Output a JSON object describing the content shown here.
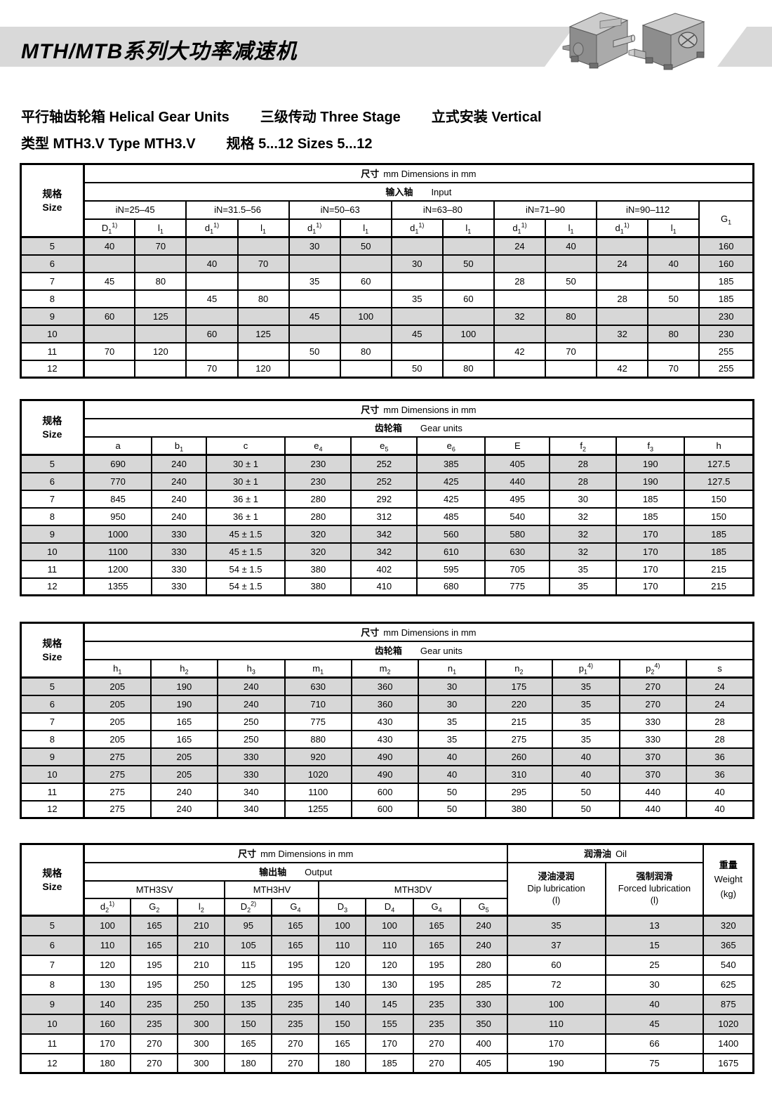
{
  "header": {
    "banner_title": "MTH/MTB系列大功率减速机",
    "subtitle1": [
      "平行轴齿轮箱 Helical Gear Units",
      "三级传动 Three Stage",
      "立式安装 Vertical"
    ],
    "subtitle2": [
      "类型 MTH3.V Type MTH3.V",
      "规格 5...12 Sizes 5...12"
    ],
    "colors": {
      "banner_gray": "#d9d9d9",
      "shaded_row_gray": "#d7d7d7"
    },
    "images": [
      "gearbox-unit-horizontal",
      "gearbox-unit-vertical"
    ]
  },
  "size_header": {
    "cn": "规格",
    "en": "Size"
  },
  "table1": {
    "dims": {
      "cn": "尺寸",
      "en": "mm Dimensions in mm"
    },
    "section": {
      "cn": "输入轴",
      "en": "Input"
    },
    "groups": [
      "iN=25–45",
      "iN=31.5–56",
      "iN=50–63",
      "iN=63–80",
      "iN=71–90",
      "iN=90–112"
    ],
    "g1": {
      "b": "G",
      "s": "1"
    },
    "cols": [
      {
        "b": "D",
        "s": "1",
        "p": "1)"
      },
      {
        "b": "l",
        "s": "1"
      },
      {
        "b": "d",
        "s": "1",
        "p": "1)"
      },
      {
        "b": "l",
        "s": "1"
      },
      {
        "b": "d",
        "s": "1",
        "p": "1)"
      },
      {
        "b": "l",
        "s": "1"
      },
      {
        "b": "d",
        "s": "1",
        "p": "1)"
      },
      {
        "b": "l",
        "s": "1"
      },
      {
        "b": "d",
        "s": "1",
        "p": "1)"
      },
      {
        "b": "l",
        "s": "1"
      },
      {
        "b": "d",
        "s": "1",
        "p": "1)"
      },
      {
        "b": "l",
        "s": "1"
      }
    ],
    "rows": [
      {
        "size": "5",
        "shaded": true,
        "cells": [
          "40",
          "70",
          "",
          "",
          "30",
          "50",
          "",
          "",
          "24",
          "40",
          "",
          "",
          "160"
        ]
      },
      {
        "size": "6",
        "shaded": true,
        "cells": [
          "",
          "",
          "40",
          "70",
          "",
          "",
          "30",
          "50",
          "",
          "",
          "24",
          "40",
          "160"
        ]
      },
      {
        "size": "7",
        "shaded": false,
        "cells": [
          "45",
          "80",
          "",
          "",
          "35",
          "60",
          "",
          "",
          "28",
          "50",
          "",
          "",
          "185"
        ]
      },
      {
        "size": "8",
        "shaded": false,
        "cells": [
          "",
          "",
          "45",
          "80",
          "",
          "",
          "35",
          "60",
          "",
          "",
          "28",
          "50",
          "185"
        ]
      },
      {
        "size": "9",
        "shaded": true,
        "cells": [
          "60",
          "125",
          "",
          "",
          "45",
          "100",
          "",
          "",
          "32",
          "80",
          "",
          "",
          "230"
        ]
      },
      {
        "size": "10",
        "shaded": true,
        "cells": [
          "",
          "",
          "60",
          "125",
          "",
          "",
          "45",
          "100",
          "",
          "",
          "32",
          "80",
          "230"
        ]
      },
      {
        "size": "11",
        "shaded": false,
        "cells": [
          "70",
          "120",
          "",
          "",
          "50",
          "80",
          "",
          "",
          "42",
          "70",
          "",
          "",
          "255"
        ]
      },
      {
        "size": "12",
        "shaded": false,
        "cells": [
          "",
          "",
          "70",
          "120",
          "",
          "",
          "50",
          "80",
          "",
          "",
          "42",
          "70",
          "255"
        ]
      }
    ]
  },
  "table2": {
    "dims": {
      "cn": "尺寸",
      "en": "mm Dimensions in mm"
    },
    "section": {
      "cn": "齿轮箱",
      "en": "Gear units"
    },
    "cols": [
      {
        "b": "a"
      },
      {
        "b": "b",
        "s": "1"
      },
      {
        "b": "c"
      },
      {
        "b": "e",
        "s": "4"
      },
      {
        "b": "e",
        "s": "5"
      },
      {
        "b": "e",
        "s": "6"
      },
      {
        "b": "E"
      },
      {
        "b": "f",
        "s": "2"
      },
      {
        "b": "f",
        "s": "3"
      },
      {
        "b": "h"
      }
    ],
    "rows": [
      {
        "size": "5",
        "shaded": true,
        "cells": [
          "690",
          "240",
          "30 ± 1",
          "230",
          "252",
          "385",
          "405",
          "28",
          "190",
          "127.5"
        ]
      },
      {
        "size": "6",
        "shaded": true,
        "cells": [
          "770",
          "240",
          "30 ± 1",
          "230",
          "252",
          "425",
          "440",
          "28",
          "190",
          "127.5"
        ]
      },
      {
        "size": "7",
        "shaded": false,
        "cells": [
          "845",
          "240",
          "36 ± 1",
          "280",
          "292",
          "425",
          "495",
          "30",
          "185",
          "150"
        ]
      },
      {
        "size": "8",
        "shaded": false,
        "cells": [
          "950",
          "240",
          "36 ± 1",
          "280",
          "312",
          "485",
          "540",
          "32",
          "185",
          "150"
        ]
      },
      {
        "size": "9",
        "shaded": true,
        "cells": [
          "1000",
          "330",
          "45 ± 1.5",
          "320",
          "342",
          "560",
          "580",
          "32",
          "170",
          "185"
        ]
      },
      {
        "size": "10",
        "shaded": true,
        "cells": [
          "1100",
          "330",
          "45 ± 1.5",
          "320",
          "342",
          "610",
          "630",
          "32",
          "170",
          "185"
        ]
      },
      {
        "size": "11",
        "shaded": false,
        "cells": [
          "1200",
          "330",
          "54 ± 1.5",
          "380",
          "402",
          "595",
          "705",
          "35",
          "170",
          "215"
        ]
      },
      {
        "size": "12",
        "shaded": false,
        "cells": [
          "1355",
          "330",
          "54 ± 1.5",
          "380",
          "410",
          "680",
          "775",
          "35",
          "170",
          "215"
        ]
      }
    ]
  },
  "table3": {
    "dims": {
      "cn": "尺寸",
      "en": "mm Dimensions in mm"
    },
    "section": {
      "cn": "齿轮箱",
      "en": "Gear units"
    },
    "cols": [
      {
        "b": "h",
        "s": "1"
      },
      {
        "b": "h",
        "s": "2"
      },
      {
        "b": "h",
        "s": "3"
      },
      {
        "b": "m",
        "s": "1"
      },
      {
        "b": "m",
        "s": "2"
      },
      {
        "b": "n",
        "s": "1"
      },
      {
        "b": "n",
        "s": "2"
      },
      {
        "b": "p",
        "s": "1",
        "p": "4)"
      },
      {
        "b": "p",
        "s": "2",
        "p": "4)"
      },
      {
        "b": "s"
      }
    ],
    "rows": [
      {
        "size": "5",
        "shaded": true,
        "cells": [
          "205",
          "190",
          "240",
          "630",
          "360",
          "30",
          "175",
          "35",
          "270",
          "24"
        ]
      },
      {
        "size": "6",
        "shaded": true,
        "cells": [
          "205",
          "190",
          "240",
          "710",
          "360",
          "30",
          "220",
          "35",
          "270",
          "24"
        ]
      },
      {
        "size": "7",
        "shaded": false,
        "cells": [
          "205",
          "165",
          "250",
          "775",
          "430",
          "35",
          "215",
          "35",
          "330",
          "28"
        ]
      },
      {
        "size": "8",
        "shaded": false,
        "cells": [
          "205",
          "165",
          "250",
          "880",
          "430",
          "35",
          "275",
          "35",
          "330",
          "28"
        ]
      },
      {
        "size": "9",
        "shaded": true,
        "cells": [
          "275",
          "205",
          "330",
          "920",
          "490",
          "40",
          "260",
          "40",
          "370",
          "36"
        ]
      },
      {
        "size": "10",
        "shaded": true,
        "cells": [
          "275",
          "205",
          "330",
          "1020",
          "490",
          "40",
          "310",
          "40",
          "370",
          "36"
        ]
      },
      {
        "size": "11",
        "shaded": false,
        "cells": [
          "275",
          "240",
          "340",
          "1100",
          "600",
          "50",
          "295",
          "50",
          "440",
          "40"
        ]
      },
      {
        "size": "12",
        "shaded": false,
        "cells": [
          "275",
          "240",
          "340",
          "1255",
          "600",
          "50",
          "380",
          "50",
          "440",
          "40"
        ]
      }
    ]
  },
  "table4": {
    "dims": {
      "cn": "尺寸",
      "en": "mm Dimensions in mm"
    },
    "oil": {
      "cn": "润滑油",
      "en": "Oil"
    },
    "weight": {
      "cn": "重量",
      "en": "Weight",
      "unit": "(kg)"
    },
    "section": {
      "cn": "输出轴",
      "en": "Output"
    },
    "dip": {
      "cn": "浸油浸润",
      "en": "Dip lubrication",
      "unit": "(l)"
    },
    "forced": {
      "cn": "强制润滑",
      "en": "Forced lubrication",
      "unit": "(l)"
    },
    "models": [
      "MTH3SV",
      "MTH3HV",
      "MTH3DV"
    ],
    "cols": [
      {
        "b": "d",
        "s": "2",
        "p": "1)"
      },
      {
        "b": "G",
        "s": "2"
      },
      {
        "b": "l",
        "s": "2"
      },
      {
        "b": "D",
        "s": "2",
        "p": "2)"
      },
      {
        "b": "G",
        "s": "4"
      },
      {
        "b": "D",
        "s": "3"
      },
      {
        "b": "D",
        "s": "4"
      },
      {
        "b": "G",
        "s": "4"
      },
      {
        "b": "G",
        "s": "5"
      }
    ],
    "rows": [
      {
        "size": "5",
        "shaded": true,
        "cells": [
          "100",
          "165",
          "210",
          "95",
          "165",
          "100",
          "100",
          "165",
          "240",
          "35",
          "13",
          "320"
        ]
      },
      {
        "size": "6",
        "shaded": true,
        "cells": [
          "110",
          "165",
          "210",
          "105",
          "165",
          "110",
          "110",
          "165",
          "240",
          "37",
          "15",
          "365"
        ]
      },
      {
        "size": "7",
        "shaded": false,
        "cells": [
          "120",
          "195",
          "210",
          "115",
          "195",
          "120",
          "120",
          "195",
          "280",
          "60",
          "25",
          "540"
        ]
      },
      {
        "size": "8",
        "shaded": false,
        "cells": [
          "130",
          "195",
          "250",
          "125",
          "195",
          "130",
          "130",
          "195",
          "285",
          "72",
          "30",
          "625"
        ]
      },
      {
        "size": "9",
        "shaded": true,
        "cells": [
          "140",
          "235",
          "250",
          "135",
          "235",
          "140",
          "145",
          "235",
          "330",
          "100",
          "40",
          "875"
        ]
      },
      {
        "size": "10",
        "shaded": true,
        "cells": [
          "160",
          "235",
          "300",
          "150",
          "235",
          "150",
          "155",
          "235",
          "350",
          "110",
          "45",
          "1020"
        ]
      },
      {
        "size": "11",
        "shaded": false,
        "cells": [
          "170",
          "270",
          "300",
          "165",
          "270",
          "165",
          "170",
          "270",
          "400",
          "170",
          "66",
          "1400"
        ]
      },
      {
        "size": "12",
        "shaded": false,
        "cells": [
          "180",
          "270",
          "300",
          "180",
          "270",
          "180",
          "185",
          "270",
          "405",
          "190",
          "75",
          "1675"
        ]
      }
    ]
  }
}
